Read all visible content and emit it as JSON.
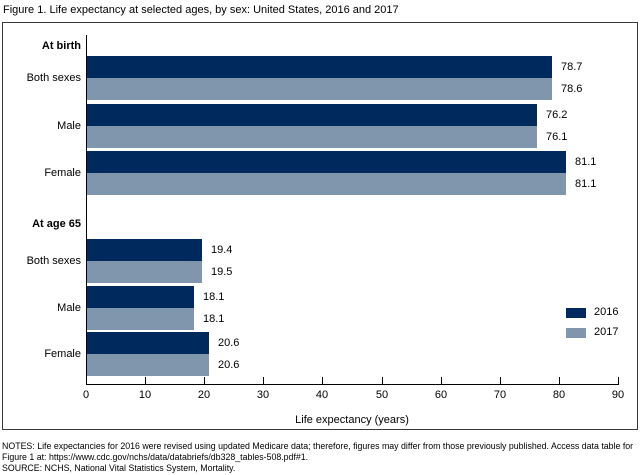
{
  "title": "Figure 1. Life expectancy at selected ages, by sex: United States, 2016 and 2017",
  "chart_data": {
    "type": "bar",
    "orientation": "horizontal",
    "title": "Figure 1. Life expectancy at selected ages, by sex: United States, 2016 and 2017",
    "xlabel": "Life expectancy (years)",
    "xlim": [
      0,
      90
    ],
    "xticks": [
      0,
      10,
      20,
      30,
      40,
      50,
      60,
      70,
      80,
      90
    ],
    "grid": false,
    "legend_position": "right-middle",
    "legend": [
      {
        "name": "2016",
        "color": "#002a5e"
      },
      {
        "name": "2017",
        "color": "#8096ad"
      }
    ],
    "groups": [
      {
        "label": "At birth",
        "rows": [
          {
            "label": "Both sexes",
            "series": [
              {
                "name": "2016",
                "value": 78.7
              },
              {
                "name": "2017",
                "value": 78.6
              }
            ]
          },
          {
            "label": "Male",
            "series": [
              {
                "name": "2016",
                "value": 76.2
              },
              {
                "name": "2017",
                "value": 76.1
              }
            ]
          },
          {
            "label": "Female",
            "series": [
              {
                "name": "2016",
                "value": 81.1
              },
              {
                "name": "2017",
                "value": 81.1
              }
            ]
          }
        ]
      },
      {
        "label": "At age 65",
        "rows": [
          {
            "label": "Both sexes",
            "series": [
              {
                "name": "2016",
                "value": 19.4
              },
              {
                "name": "2017",
                "value": 19.5
              }
            ]
          },
          {
            "label": "Male",
            "series": [
              {
                "name": "2016",
                "value": 18.1
              },
              {
                "name": "2017",
                "value": 18.1
              }
            ]
          },
          {
            "label": "Female",
            "series": [
              {
                "name": "2016",
                "value": 20.6
              },
              {
                "name": "2017",
                "value": 20.6
              }
            ]
          }
        ]
      }
    ]
  },
  "notes_lines": [
    "NOTES: Life expectancies for 2016 were revised using updated Medicare data; therefore, figures may differ from those previously published. Access data table for",
    "Figure 1 at: https://www.cdc.gov/nchs/data/databriefs/db328_tables-508.pdf#1.",
    "SOURCE: NCHS, National Vital Statistics System, Mortality."
  ]
}
